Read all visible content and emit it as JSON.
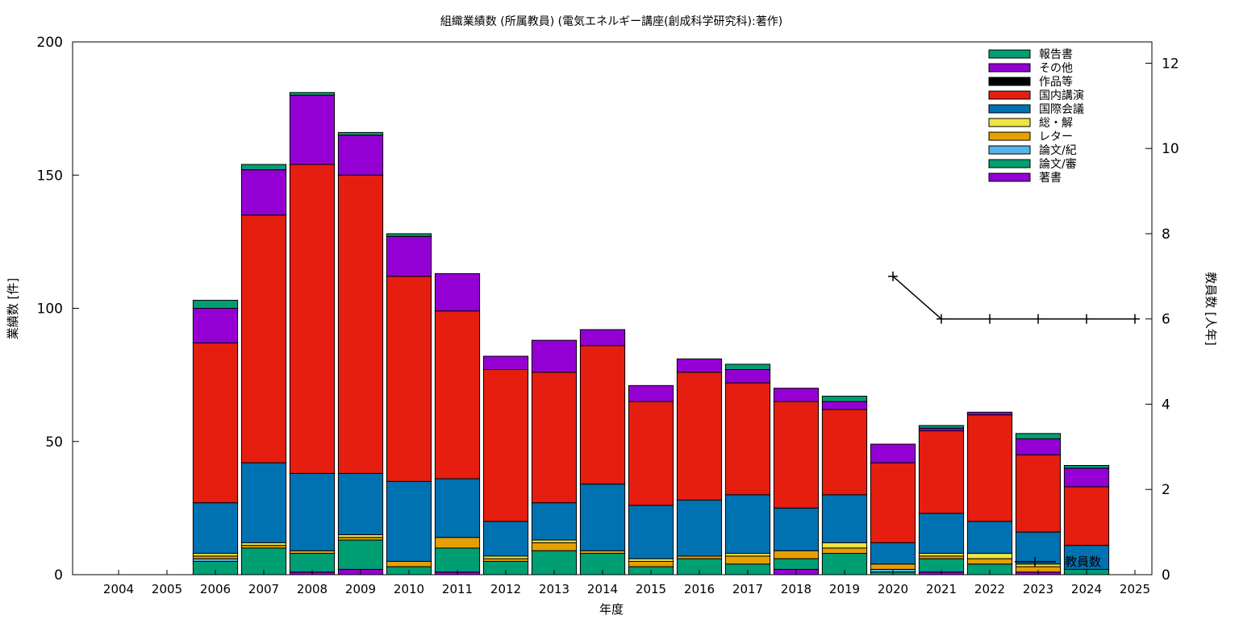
{
  "chart_data": {
    "type": "bar",
    "title": "組織業績数 (所属教員) (電気エネルギー講座(創成科学研究科):著作)",
    "xlabel": "年度",
    "ylabel": "業績数 [件]",
    "y2label": "教員数 [人年]",
    "ylim": [
      0,
      200
    ],
    "y2lim": [
      0,
      12.5
    ],
    "yticks": [
      "0",
      "50",
      "100",
      "150",
      "200"
    ],
    "y2ticks": [
      "0",
      "2",
      "4",
      "6",
      "8",
      "10",
      "12"
    ],
    "categories": [
      "2004",
      "2005",
      "2006",
      "2007",
      "2008",
      "2009",
      "2010",
      "2011",
      "2012",
      "2013",
      "2014",
      "2015",
      "2016",
      "2017",
      "2018",
      "2019",
      "2020",
      "2021",
      "2022",
      "2023",
      "2024",
      "2025"
    ],
    "legend_position": "top-right",
    "series": [
      {
        "name": "著書",
        "color": "#9400d3",
        "values": [
          0,
          0,
          0,
          0,
          1,
          2,
          0,
          1,
          0,
          0,
          0,
          0,
          0,
          0,
          2,
          0,
          0,
          1,
          0,
          1,
          0,
          0
        ]
      },
      {
        "name": "論文/審",
        "color": "#009e73",
        "values": [
          0,
          0,
          5,
          10,
          7,
          11,
          3,
          9,
          5,
          9,
          8,
          3,
          6,
          4,
          4,
          8,
          1,
          5,
          4,
          0,
          2,
          0
        ]
      },
      {
        "name": "論文/紀",
        "color": "#56b4e9",
        "values": [
          0,
          0,
          1,
          0,
          0,
          0,
          0,
          0,
          0,
          0,
          0,
          0,
          0,
          0,
          0,
          0,
          1,
          0,
          0,
          0,
          0,
          0
        ]
      },
      {
        "name": "レター",
        "color": "#e69f00",
        "values": [
          0,
          0,
          1,
          1,
          1,
          1,
          2,
          4,
          1,
          3,
          1,
          2,
          1,
          3,
          3,
          2,
          2,
          1,
          2,
          2,
          0,
          0
        ]
      },
      {
        "name": "総・解",
        "color": "#f0e442",
        "values": [
          0,
          0,
          1,
          1,
          0,
          1,
          0,
          0,
          1,
          1,
          0,
          1,
          0,
          1,
          0,
          2,
          0,
          1,
          2,
          1,
          0,
          0
        ]
      },
      {
        "name": "国際会議",
        "color": "#0072b2",
        "values": [
          0,
          0,
          19,
          30,
          29,
          23,
          30,
          22,
          13,
          14,
          25,
          20,
          21,
          22,
          16,
          18,
          8,
          15,
          12,
          12,
          9,
          0
        ]
      },
      {
        "name": "国内講演",
        "color": "#e51e10",
        "values": [
          0,
          0,
          60,
          93,
          116,
          112,
          77,
          63,
          57,
          49,
          52,
          39,
          48,
          42,
          40,
          32,
          30,
          31,
          40,
          29,
          22,
          0
        ]
      },
      {
        "name": "作品等",
        "color": "#000000",
        "values": [
          0,
          0,
          0,
          0,
          0,
          0,
          0,
          0,
          0,
          0,
          0,
          0,
          0,
          0,
          0,
          0,
          0,
          0,
          0,
          0,
          0,
          0
        ]
      },
      {
        "name": "その他",
        "color": "#9400d3",
        "values": [
          0,
          0,
          13,
          17,
          26,
          15,
          15,
          14,
          5,
          12,
          6,
          6,
          5,
          5,
          5,
          3,
          7,
          1,
          1,
          6,
          7,
          0
        ]
      },
      {
        "name": "報告書",
        "color": "#009e73",
        "values": [
          0,
          0,
          3,
          2,
          1,
          1,
          1,
          0,
          0,
          0,
          0,
          0,
          0,
          2,
          0,
          2,
          0,
          1,
          0,
          2,
          1,
          0
        ]
      }
    ],
    "line_series": {
      "name": "教員数",
      "axis": "y2",
      "x": [
        "2020",
        "2021",
        "2022",
        "2023",
        "2024",
        "2025"
      ],
      "values": [
        7,
        6,
        6,
        6,
        6,
        6
      ]
    },
    "legend_order": [
      "報告書",
      "その他",
      "作品等",
      "国内講演",
      "国際会議",
      "総・解",
      "レター",
      "論文/紀",
      "論文/審",
      "著書"
    ]
  }
}
